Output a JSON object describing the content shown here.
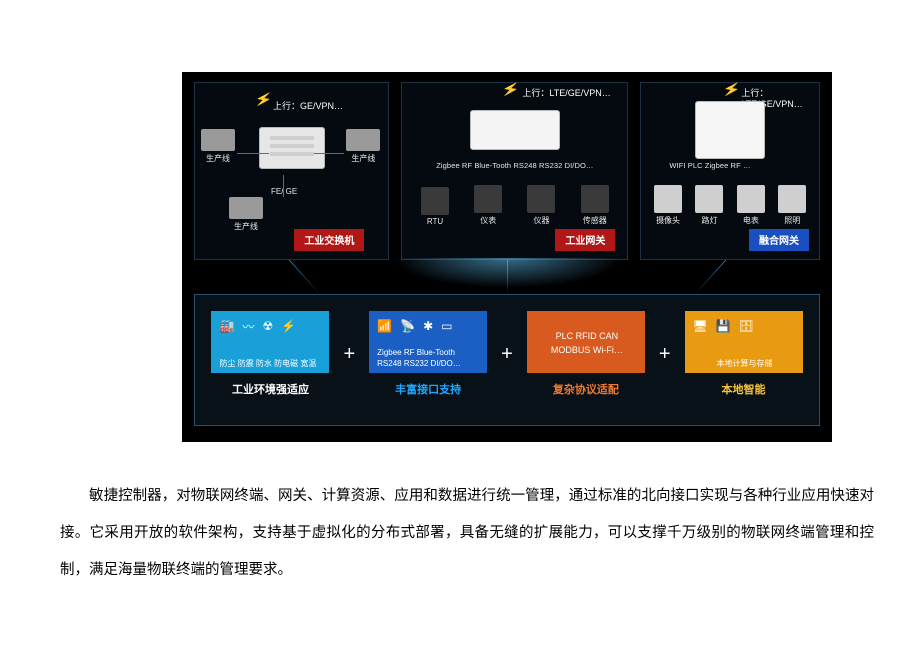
{
  "colors": {
    "bg": "#000000",
    "panel_border": "#1e3246",
    "bottom_border": "#28506e",
    "red_badge": "#b01818",
    "blue_badge": "#1a4fc0",
    "card1": "#19a0d8",
    "card2": "#1b5fc4",
    "card3": "#d85a1f",
    "card4": "#e89b12",
    "card1_label": "#ffffff",
    "card2_label": "#1ea7ff",
    "card3_label": "#ef7a2e",
    "card4_label": "#f5c23c",
    "bolt": "#f5c518"
  },
  "panels": {
    "p1": {
      "uplink": "上行：GE/VPN…",
      "fe_ge": "FE/ GE",
      "sub": [
        "生产线",
        "生产线",
        "生产线"
      ],
      "badge": "工业交换机"
    },
    "p2": {
      "uplink": "上行：LTE/GE/VPN…",
      "interfaces": "Zigbee RF Blue-Tooth RS248 RS232 DI/DO…",
      "sub": [
        {
          "label": "RTU"
        },
        {
          "label": "仪表"
        },
        {
          "label": "仪器"
        },
        {
          "label": "传感器"
        }
      ],
      "badge": "工业网关"
    },
    "p3": {
      "uplink": "上行：LTE/GE/VPN…",
      "interfaces": "WIFI     PLC Zigbee RF …",
      "sub": [
        {
          "label": "摄像头"
        },
        {
          "label": "路灯"
        },
        {
          "label": "电表"
        },
        {
          "label": "照明"
        }
      ],
      "badge": "融合网关"
    }
  },
  "cards": {
    "c1": {
      "body": "防尘 防震 防水 防电磁 宽温",
      "label": "工业环境强适应"
    },
    "c2": {
      "body1": "Zigbee RF Blue-Tooth",
      "body2": "RS248 RS232  DI/DO…",
      "label": "丰富接口支持"
    },
    "c3": {
      "body1": "PLC RFID CAN",
      "body2": "MODBUS Wi-Fi…",
      "label": "复杂协议适配"
    },
    "c4": {
      "body": "本地计算与存储",
      "label": "本地智能"
    }
  },
  "paragraph": "敏捷控制器，对物联网终端、网关、计算资源、应用和数据进行统一管理，通过标准的北向接口实现与各种行业应用快速对接。它采用开放的软件架构，支持基于虚拟化的分布式部署，具备无缝的扩展能力，可以支撑千万级别的物联网终端管理和控制，满足海量物联终端的管理要求。"
}
